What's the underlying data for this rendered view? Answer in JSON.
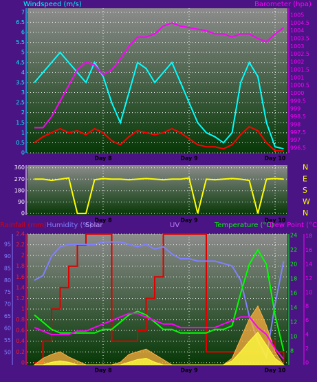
{
  "chart_data": [
    {
      "type": "line",
      "x": [
        7.2,
        7.3,
        7.4,
        7.5,
        7.6,
        7.7,
        7.8,
        7.9,
        8.0,
        8.1,
        8.2,
        8.3,
        8.4,
        8.5,
        8.6,
        8.7,
        8.8,
        8.9,
        9.0,
        9.1,
        9.2,
        9.3,
        9.4,
        9.5,
        9.6,
        9.7,
        9.8,
        9.9,
        10.0,
        10.1
      ],
      "xlim": [
        7.12,
        10.144
      ],
      "xticks": [
        {
          "value": 8,
          "label": "Day 8"
        },
        {
          "value": 9,
          "label": "Day 9"
        },
        {
          "value": 10,
          "label": "Day 10"
        }
      ],
      "ylim": [
        0,
        7.2
      ],
      "yticks": [
        0,
        0.5,
        1,
        1.5,
        2,
        2.5,
        3,
        3.5,
        4,
        4.5,
        5,
        5.5,
        6,
        6.5,
        7
      ],
      "y2lim": [
        996.19,
        1005.44
      ],
      "y2ticks": [
        996.5,
        997,
        997.5,
        998,
        998.5,
        999,
        999.5,
        1000,
        1000.5,
        1001,
        1001.5,
        1002,
        1002.5,
        1003,
        1003.5,
        1004,
        1004.5,
        1005
      ],
      "grid": true,
      "series": [
        {
          "name": "Windspeed (m/s)",
          "color": "#00ffff",
          "values": [
            3.5,
            4,
            4.5,
            5,
            4.5,
            4,
            3.5,
            4.5,
            3.8,
            2.5,
            1.5,
            3,
            4.5,
            4.2,
            3.5,
            4,
            4.5,
            3.5,
            2.5,
            1.5,
            1,
            0.8,
            0.5,
            1,
            3.5,
            4.5,
            3.8,
            1.5,
            0.3,
            0.2
          ]
        },
        {
          "color": "#ff0000",
          "values": [
            0.5,
            0.8,
            1,
            1.2,
            1,
            1.1,
            0.9,
            1.2,
            1,
            0.6,
            0.4,
            0.8,
            1.1,
            1,
            0.9,
            1,
            1.2,
            1,
            0.7,
            0.4,
            0.3,
            0.3,
            0.2,
            0.4,
            0.9,
            1.3,
            1.1,
            0.5,
            0.1,
            0.1
          ]
        },
        {
          "name": "Barometer (hpa)",
          "color": "#ff00ff",
          "axis": "y2",
          "values": [
            997.8,
            997.8,
            998.5,
            999.5,
            1000.5,
            1001.5,
            1002,
            1001.8,
            1001.2,
            1001.5,
            1002.2,
            1003,
            1003.6,
            1003.6,
            1003.8,
            1004.3,
            1004.5,
            1004.3,
            1004.2,
            1004.1,
            1004,
            1003.8,
            1003.8,
            1003.6,
            1003.8,
            1003.8,
            1003.5,
            1003.3,
            1003.8,
            1004.2
          ]
        }
      ]
    },
    {
      "type": "line",
      "x": [
        7.2,
        7.3,
        7.4,
        7.5,
        7.6,
        7.7,
        7.8,
        7.9,
        8.0,
        8.1,
        8.2,
        8.3,
        8.4,
        8.5,
        8.6,
        8.7,
        8.8,
        8.9,
        9.0,
        9.1,
        9.2,
        9.3,
        9.4,
        9.5,
        9.6,
        9.7,
        9.8,
        9.9,
        10.0,
        10.1
      ],
      "xlim": [
        7.12,
        10.144
      ],
      "xticks": [
        {
          "value": 8,
          "label": "Day 8"
        },
        {
          "value": 9,
          "label": "Day 9"
        },
        {
          "value": 10,
          "label": "Day 10"
        }
      ],
      "ylim": [
        -10,
        380
      ],
      "yticks": [
        0,
        90,
        180,
        270,
        360
      ],
      "compass": [
        "N",
        "W",
        "S",
        "E",
        "N"
      ],
      "grid": true,
      "series": [
        {
          "color": "#ffff00",
          "values": [
            270,
            270,
            260,
            270,
            280,
            0,
            0,
            265,
            275,
            270,
            270,
            265,
            270,
            275,
            270,
            265,
            270,
            270,
            280,
            0,
            270,
            265,
            270,
            275,
            270,
            260,
            0,
            270,
            275,
            270
          ]
        }
      ]
    },
    {
      "type": "line",
      "x": [
        7.2,
        7.3,
        7.4,
        7.5,
        7.6,
        7.7,
        7.8,
        7.9,
        8.0,
        8.1,
        8.2,
        8.3,
        8.4,
        8.5,
        8.6,
        8.7,
        8.8,
        8.9,
        9.0,
        9.1,
        9.2,
        9.3,
        9.4,
        9.5,
        9.6,
        9.7,
        9.8,
        9.9,
        10.0,
        10.1
      ],
      "xlim": [
        7.12,
        10.144
      ],
      "xticks": [
        {
          "value": 8,
          "label": "Day 8"
        },
        {
          "value": 9,
          "label": "Day 9"
        },
        {
          "value": 10,
          "label": "Day 10"
        }
      ],
      "grid": true,
      "axes": [
        {
          "color": "#ff2020",
          "ylim": [
            -0.04,
            2.4
          ],
          "yticks": [
            0,
            0.2,
            0.4,
            0.6,
            0.8,
            1,
            1.2,
            1.4,
            1.6,
            1.8,
            2,
            2.2,
            2.4
          ]
        },
        {
          "color": "#8080ff",
          "ylim": [
            44.8,
            99.3
          ],
          "yticks": [
            50,
            55,
            60,
            65,
            70,
            75,
            80,
            85,
            90,
            95
          ]
        },
        {
          "color": "#00ff00",
          "ylim": [
            6.1,
            24.2
          ],
          "yticks": [
            8,
            10,
            12,
            14,
            16,
            18,
            20,
            22,
            24
          ]
        },
        {
          "color": "#ff00ff",
          "ylim": [
            -0.3,
            18.3
          ],
          "yticks": [
            0,
            2,
            4,
            6,
            8,
            10,
            12,
            14,
            16,
            18
          ]
        }
      ],
      "series": [
        {
          "name": "Rainfall (mm)",
          "color": "#e00000",
          "axis": 0,
          "step": true,
          "values": [
            0,
            0.4,
            1,
            1.4,
            1.8,
            2.2,
            2.4,
            2.4,
            2.4,
            0.4,
            0.4,
            0.4,
            0.6,
            1.2,
            1.6,
            2.4,
            2.4,
            2.4,
            2.4,
            2.4,
            0.2,
            0.2,
            0.2,
            0.2,
            0.2,
            0.2,
            0.4,
            0.4,
            0.2,
            0
          ]
        },
        {
          "name": "Humidity (%)",
          "color": "#8080ff",
          "axis": 1,
          "values": [
            80,
            82,
            90,
            94,
            95,
            95,
            95,
            95,
            96,
            96,
            96,
            95,
            94,
            95,
            93,
            94,
            91,
            89,
            89,
            88,
            88,
            88,
            87,
            86,
            80,
            65,
            55,
            48,
            70,
            88
          ]
        },
        {
          "name": "Solar",
          "color": "#ffb040",
          "fill": true,
          "ylim": [
            0,
            1000
          ],
          "values": [
            0,
            50,
            80,
            100,
            60,
            30,
            0,
            0,
            0,
            0,
            20,
            80,
            100,
            120,
            80,
            40,
            0,
            0,
            0,
            0,
            0,
            0,
            0,
            50,
            200,
            350,
            450,
            300,
            100,
            0
          ]
        },
        {
          "name": "UV",
          "color": "#ffff40",
          "fill": true,
          "ylim": [
            0,
            10
          ],
          "values": [
            0,
            0,
            0.2,
            0.3,
            0.2,
            0,
            0,
            0,
            0,
            0,
            0,
            0.2,
            0.4,
            0.5,
            0.2,
            0,
            0,
            0,
            0,
            0,
            0,
            0,
            0,
            0.3,
            1,
            1.8,
            2.5,
            1.5,
            0.5,
            0
          ]
        },
        {
          "name": "Temperature (°C)",
          "color": "#00ff00",
          "axis": 2,
          "values": [
            13,
            12,
            11,
            10.5,
            10.5,
            10.5,
            10.5,
            10.5,
            11,
            11,
            12,
            13,
            13.5,
            13,
            12,
            11,
            11,
            10.5,
            10.5,
            10.5,
            10.5,
            11,
            11,
            11.5,
            16,
            20,
            22,
            20,
            13,
            8
          ]
        },
        {
          "name": "Dew Point (°C)",
          "color": "#ff00ff",
          "axis": 3,
          "values": [
            5,
            4.5,
            4,
            4,
            4,
            4.5,
            4.5,
            5,
            5.5,
            6,
            6.5,
            7,
            7,
            6.5,
            6,
            5.5,
            5.5,
            5,
            5,
            5,
            5,
            5,
            5.5,
            6,
            6.5,
            6.5,
            5,
            4,
            2,
            0.5
          ]
        }
      ]
    }
  ]
}
